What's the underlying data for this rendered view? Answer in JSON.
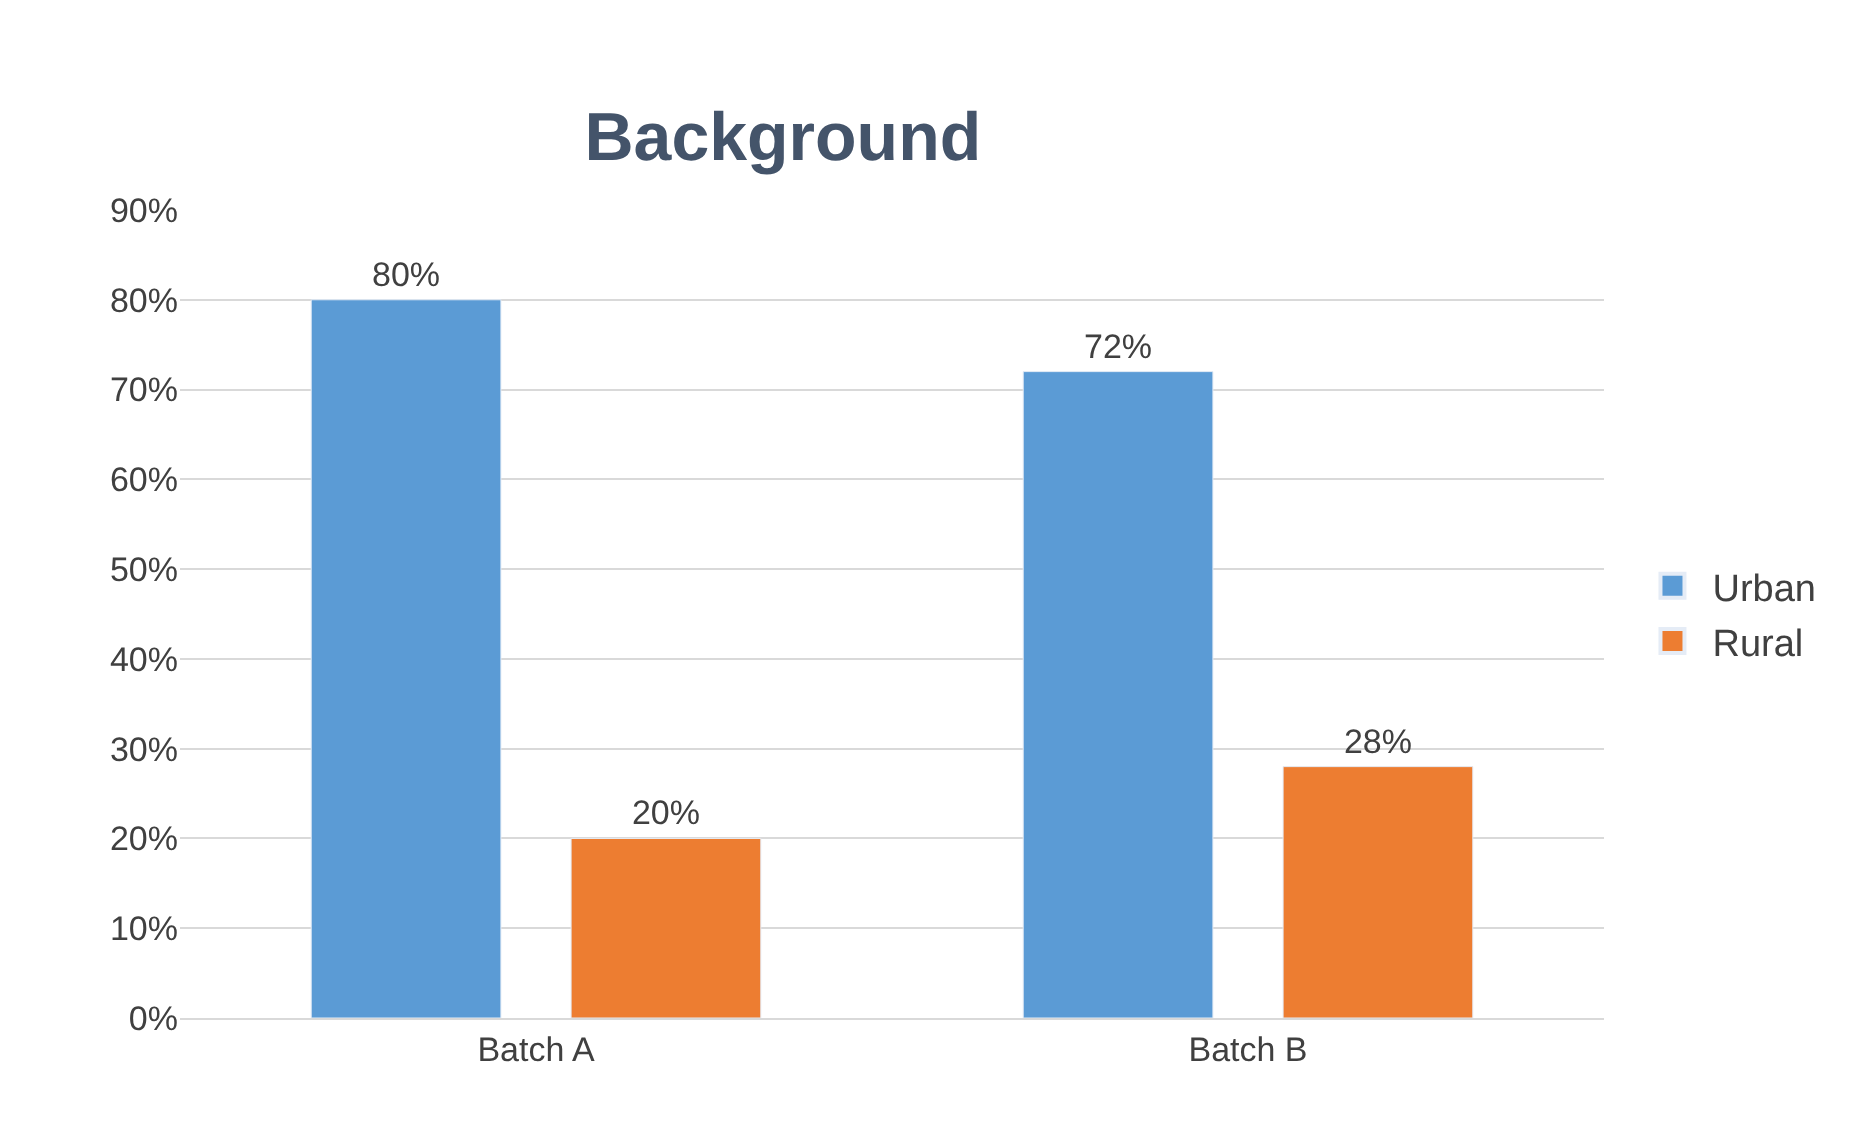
{
  "chart_data": {
    "type": "bar",
    "title": "Background",
    "categories": [
      "Batch A",
      "Batch B"
    ],
    "series": [
      {
        "name": "Urban",
        "color": "#5b9bd5",
        "values": [
          80,
          72
        ],
        "value_labels": [
          "80%",
          "72%"
        ]
      },
      {
        "name": "Rural",
        "color": "#ed7d31",
        "values": [
          20,
          28
        ],
        "value_labels": [
          "20%",
          "28%"
        ]
      }
    ],
    "ylim": [
      0,
      90
    ],
    "yticks": [
      {
        "value": 0,
        "label": "0%"
      },
      {
        "value": 10,
        "label": "10%"
      },
      {
        "value": 20,
        "label": "20%"
      },
      {
        "value": 30,
        "label": "30%"
      },
      {
        "value": 40,
        "label": "40%"
      },
      {
        "value": 50,
        "label": "50%"
      },
      {
        "value": 60,
        "label": "60%"
      },
      {
        "value": 70,
        "label": "70%"
      },
      {
        "value": 80,
        "label": "80%"
      },
      {
        "value": 90,
        "label": "90%"
      }
    ],
    "grid": "y",
    "legend": "right"
  }
}
